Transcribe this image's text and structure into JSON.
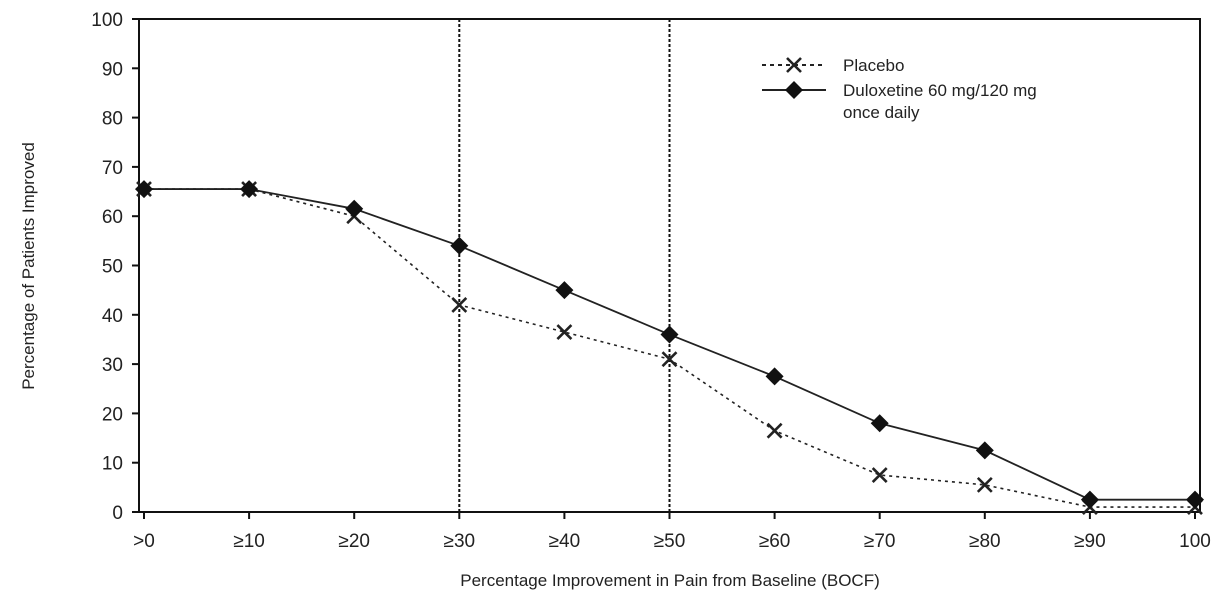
{
  "chart_data": {
    "type": "line",
    "xlabel": "Percentage Improvement in Pain from Baseline (BOCF)",
    "ylabel": "Percentage of Patients Improved",
    "categories": [
      ">0",
      "≥10",
      "≥20",
      "≥30",
      "≥40",
      "≥50",
      "≥60",
      "≥70",
      "≥80",
      "≥90",
      "100"
    ],
    "ylim": [
      0,
      100
    ],
    "yticks": [
      0,
      10,
      20,
      30,
      40,
      50,
      60,
      70,
      80,
      90,
      100
    ],
    "reference_lines_at": [
      "≥30",
      "≥50"
    ],
    "grid": false,
    "legend_position": "top-right",
    "series": [
      {
        "name": "Placebo",
        "marker": "x",
        "line_style": "dotted",
        "values": [
          65.5,
          65.5,
          60,
          42,
          36.5,
          31,
          16.5,
          7.5,
          5.5,
          1,
          1
        ]
      },
      {
        "name": "Duloxetine 60 mg/120 mg once daily",
        "legend_lines": [
          "Duloxetine 60 mg/120 mg",
          "once daily"
        ],
        "marker": "diamond",
        "line_style": "solid",
        "values": [
          65.5,
          65.5,
          61.5,
          54,
          45,
          36,
          27.5,
          18,
          12.5,
          2.5,
          2.5
        ]
      }
    ]
  }
}
